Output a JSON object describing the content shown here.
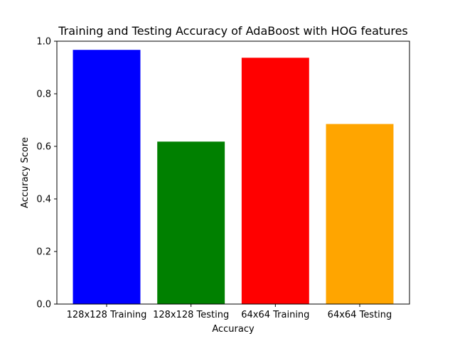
{
  "chart_data": {
    "type": "bar",
    "title": "Training and Testing Accuracy of AdaBoost with HOG features",
    "xlabel": "Accuracy",
    "ylabel": "Accuracy Score",
    "categories": [
      "128x128 Training",
      "128x128 Testing",
      "64x64 Training",
      "64x64 Testing"
    ],
    "values": [
      0.967,
      0.618,
      0.937,
      0.685
    ],
    "colors": [
      "#0000ff",
      "#008000",
      "#ff0000",
      "#ffa500"
    ],
    "ylim": [
      0,
      1.0
    ],
    "yticks": [
      0.0,
      0.2,
      0.4,
      0.6,
      0.8,
      1.0
    ],
    "ytick_labels": [
      "0.0",
      "0.2",
      "0.4",
      "0.6",
      "0.8",
      "1.0"
    ],
    "grid": false,
    "legend": "none"
  }
}
